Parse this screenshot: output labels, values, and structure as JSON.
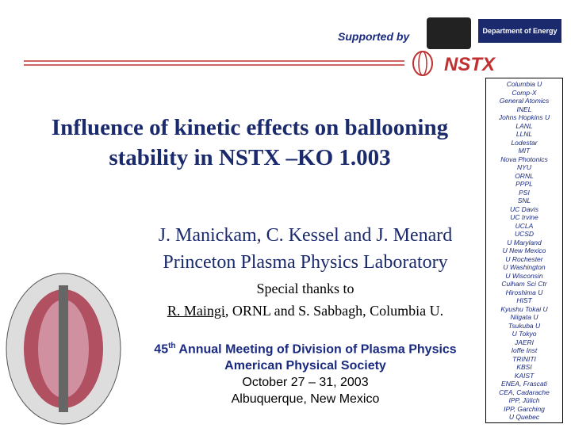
{
  "header": {
    "supported_by": "Supported by",
    "logos": [
      "Department of Energy",
      "NSTX"
    ]
  },
  "title": [
    "Influence of kinetic effects on ballooning",
    "stability in NSTX –KO 1.003"
  ],
  "authors": [
    "J. Manickam, C. Kessel and J. Menard",
    "Princeton Plasma Physics Laboratory"
  ],
  "thanks": {
    "intro": "Special thanks to",
    "name": "R. Maingi",
    "rest": ", ORNL and S. Sabbagh, Columbia U."
  },
  "meeting": {
    "number": "45",
    "ordinal": "th",
    "name": "Annual Meeting of Division of Plasma Physics",
    "lines": [
      "American Physical Society",
      "October 27 – 31, 2003",
      "Albuquerque, New Mexico"
    ]
  },
  "institutions": [
    "Columbia U",
    "Comp-X",
    "General Atomics",
    "INEL",
    "Johns Hopkins U",
    "LANL",
    "LLNL",
    "Lodestar",
    "MIT",
    "Nova Photonics",
    "NYU",
    "ORNL",
    "PPPL",
    "PSI",
    "SNL",
    "UC Davis",
    "UC Irvine",
    "UCLA",
    "UCSD",
    "U Maryland",
    "U New Mexico",
    "U Rochester",
    "U Washington",
    "U Wisconsin",
    "Culham Sci Ctr",
    "Hiroshima U",
    "HIST",
    "Kyushu Tokai U",
    "Niigata U",
    "Tsukuba U",
    "U Tokyo",
    "JAERI",
    "Ioffe Inst",
    "TRINITI",
    "KBSI",
    "KAIST",
    "ENEA, Frascati",
    "CEA, Cadarache",
    "IPP, Jülich",
    "IPP, Garching",
    "U Quebec"
  ]
}
